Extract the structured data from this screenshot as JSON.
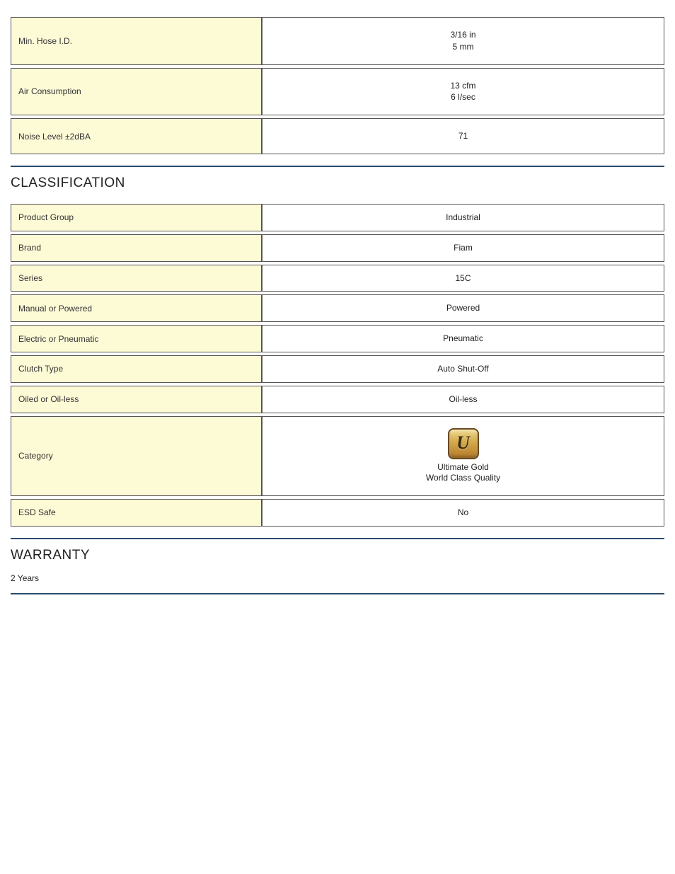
{
  "top_specs": [
    {
      "label": "Min. Hose I.D.",
      "value": "3/16 in\n5 mm"
    },
    {
      "label": "Air Consumption",
      "value": "13 cfm\n6 l/sec"
    },
    {
      "label": "Noise Level ±2dBA",
      "value": "71"
    }
  ],
  "classification": {
    "heading": "CLASSIFICATION",
    "rows": [
      {
        "label": "Product Group",
        "value": "Industrial"
      },
      {
        "label": "Brand",
        "value": "Fiam"
      },
      {
        "label": "Series",
        "value": "15C"
      },
      {
        "label": "Manual or Powered",
        "value": "Powered"
      },
      {
        "label": "Electric or Pneumatic",
        "value": "Pneumatic"
      },
      {
        "label": "Clutch Type",
        "value": "Auto Shut-Off"
      },
      {
        "label": "Oiled or Oil-less",
        "value": "Oil-less"
      }
    ],
    "category": {
      "label": "Category",
      "badge_letter": "U",
      "caption_line1": "Ultimate Gold",
      "caption_line2": "World Class Quality"
    },
    "esd": {
      "label": "ESD Safe",
      "value": "No"
    }
  },
  "warranty": {
    "heading": "WARRANTY",
    "text": "2 Years"
  },
  "colors": {
    "label_bg": "#fdfad6",
    "divider": "#2b4a6f",
    "border": "#555555"
  }
}
